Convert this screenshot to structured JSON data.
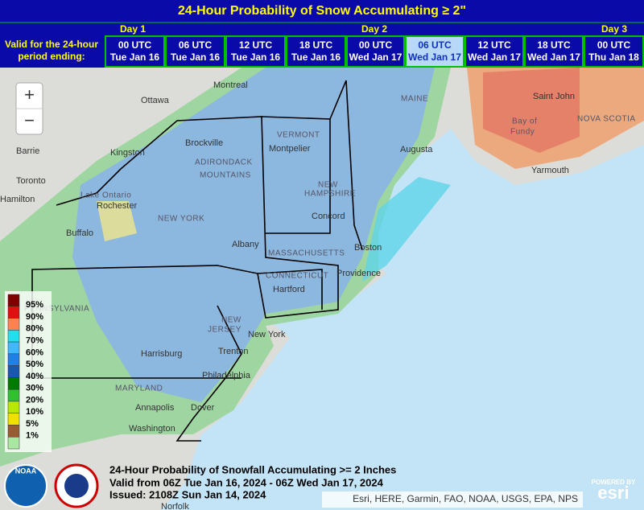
{
  "header": {
    "title": "24-Hour Probability of Snow Accumulating ≥ 2\"",
    "days": [
      "Day 1",
      "Day 2",
      "Day 3"
    ],
    "valid_label": [
      "Valid for the 24-hour",
      "period ending:"
    ],
    "times": [
      [
        "00 UTC",
        "Tue Jan 16"
      ],
      [
        "06 UTC",
        "Tue Jan 16"
      ],
      [
        "12 UTC",
        "Tue Jan 16"
      ],
      [
        "18 UTC",
        "Tue Jan 16"
      ],
      [
        "00 UTC",
        "Wed Jan 17"
      ],
      [
        "06 UTC",
        "Wed Jan 17"
      ],
      [
        "12 UTC",
        "Wed Jan 17"
      ],
      [
        "18 UTC",
        "Wed Jan 17"
      ],
      [
        "00 UTC",
        "Thu Jan 18"
      ]
    ]
  },
  "zoom": [
    "+",
    "−"
  ],
  "legend": [
    "95%",
    "90%",
    "80%",
    "70%",
    "60%",
    "50%",
    "40%",
    "30%",
    "20%",
    "10%",
    "5%",
    "1%"
  ],
  "labels": [
    "Montreal",
    "Ottawa",
    "Kingston",
    "Brockville",
    "Barrie",
    "Toronto",
    "Hamilton",
    "Lake Ontario",
    "Rochester",
    "Buffalo",
    "ADIRONDACK",
    "MOUNTAINS",
    "NEW YORK",
    "Albany",
    "VERMONT",
    "Montpelier",
    "NEW",
    "HAMPSHIRE",
    "Concord",
    "MAINE",
    "Augusta",
    "Saint John",
    "Bay of",
    "Fundy",
    "NOVA SCOTIA",
    "Yarmouth",
    "Boston",
    "MASSACHUSETTS",
    "CONNECTICUT",
    "Hartford",
    "Providence",
    "New York",
    "NEW",
    "JERSEY",
    "Trenton",
    "Philadelphia",
    "Harrisburg",
    "PENNSYLVANIA",
    "MARYLAND",
    "Annapolis",
    "Dover",
    "Washington",
    "Norfolk"
  ],
  "caption": [
    "24-Hour Probability of Snowfall Accumulating >= 2 Inches",
    "Valid from 06Z Tue Jan 16, 2024 - 06Z Wed Jan 17, 2024",
    "Issued: 2108Z Sun Jan 14, 2024"
  ],
  "attribution": "Esri, HERE, Garmin, FAO, NOAA, USGS, EPA, NPS",
  "logos": {
    "noaa": "NOAA",
    "powered": "POWERED BY",
    "esri": "esri"
  }
}
